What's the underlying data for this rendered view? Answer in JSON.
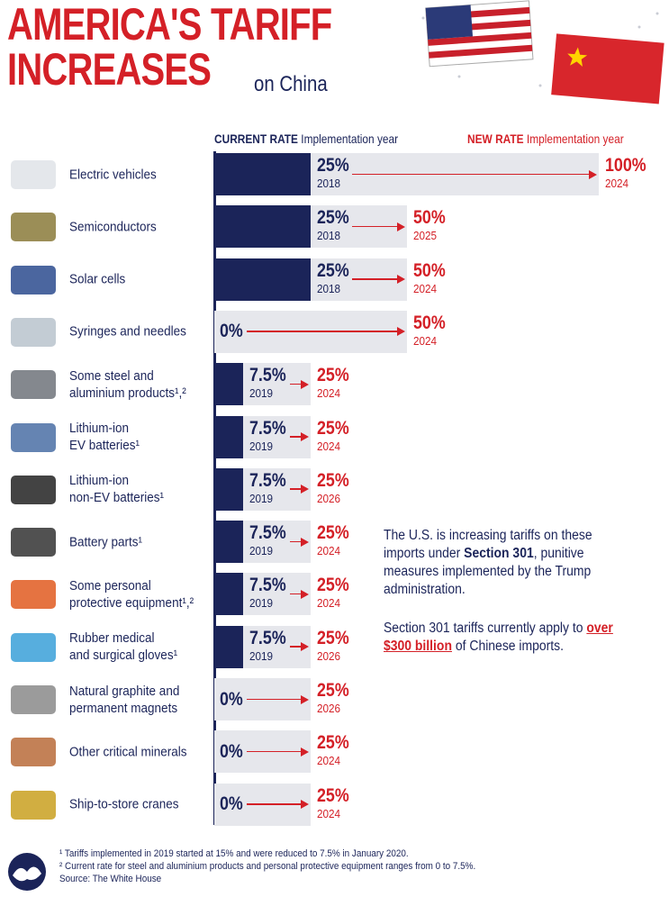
{
  "chart_data": {
    "type": "bar",
    "orientation": "horizontal",
    "title": "AMERICA'S TARIFF\nINCREASES",
    "subtitle": "on China",
    "categories": [
      "Electric vehicles",
      "Semiconductors",
      "Solar cells",
      "Syringes and needles",
      "Some steel and\naluminium products¹,²",
      "Lithium-ion\nEV batteries¹",
      "Lithium-ion\nnon-EV batteries¹",
      "Battery parts¹",
      "Some personal\nprotective equipment¹,²",
      "Rubber medical\nand surgical gloves¹",
      "Natural graphite and\npermanent magnets",
      "Other critical minerals",
      "Ship-to-store cranes"
    ],
    "series": [
      {
        "name": "CURRENT RATE",
        "year_label": "Implementation year",
        "color": "#1b2459",
        "values": [
          25,
          25,
          25,
          0,
          7.5,
          7.5,
          7.5,
          7.5,
          7.5,
          7.5,
          0,
          0,
          0
        ],
        "value_labels": [
          "25%",
          "25%",
          "25%",
          "0%",
          "7.5%",
          "7.5%",
          "7.5%",
          "7.5%",
          "7.5%",
          "7.5%",
          "0%",
          "0%",
          "0%"
        ],
        "years": [
          "2018",
          "2018",
          "2018",
          null,
          "2019",
          "2019",
          "2019",
          "2019",
          "2019",
          "2019",
          null,
          null,
          null
        ]
      },
      {
        "name": "NEW RATE",
        "year_label": "Implementation year",
        "color": "#d42027",
        "values": [
          100,
          50,
          50,
          50,
          25,
          25,
          25,
          25,
          25,
          25,
          25,
          25,
          25
        ],
        "value_labels": [
          "100%",
          "50%",
          "50%",
          "50%",
          "25%",
          "25%",
          "25%",
          "25%",
          "25%",
          "25%",
          "25%",
          "25%",
          "25%"
        ],
        "years": [
          "2024",
          "2025",
          "2024",
          "2024",
          "2024",
          "2024",
          "2026",
          "2024",
          "2024",
          "2026",
          "2026",
          "2024",
          "2024"
        ]
      }
    ],
    "xlim": [
      0,
      100
    ],
    "annotations": [
      [
        {
          "text": "The U.S. is increasing tariffs on these imports under "
        },
        {
          "text": "Section 301",
          "bold": true
        },
        {
          "text": ", punitive measures implemented by the Trump administration."
        }
      ],
      [
        {
          "text": "Section 301 tariffs currently apply to "
        },
        {
          "text": "over $300 billion",
          "bold": true,
          "red": true
        },
        {
          "text": " of Chinese imports."
        }
      ]
    ],
    "footnotes": [
      "¹ Tariffs implemented in 2019 started at 15% and were reduced to 7.5% in January 2020.",
      "² Current rate for steel and aluminium products and personal protective equipment ranges from 0 to 7.5%.",
      "Source: The White House"
    ]
  }
}
